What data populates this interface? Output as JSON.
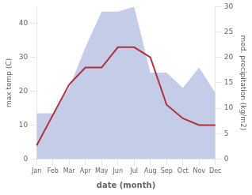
{
  "chart_data": {
    "type": "line",
    "xlabel": "date (month)",
    "ylabel": "max temp (C)",
    "y2label": "med. precipitation (kg/m2)",
    "categories": [
      "Jan",
      "Feb",
      "Mar",
      "Apr",
      "May",
      "Jun",
      "Jul",
      "Aug",
      "Sep",
      "Oct",
      "Nov",
      "Dec"
    ],
    "series": [
      {
        "type": "area",
        "axis": "y2",
        "color": "#c5cce8",
        "values": [
          9,
          9,
          14,
          22,
          29,
          29,
          30,
          17,
          17,
          14,
          18,
          13
        ]
      },
      {
        "type": "line",
        "color": "#b03040",
        "values": [
          4,
          13,
          22,
          27,
          27,
          33,
          33,
          30,
          16,
          12,
          10,
          10
        ]
      }
    ],
    "ylim": [
      0,
      45
    ],
    "yticks": [
      0,
      10,
      20,
      30,
      40
    ],
    "y2lim": [
      0,
      30
    ],
    "y2ticks": [
      0,
      5,
      10,
      15,
      20,
      25,
      30
    ],
    "grid": false
  }
}
